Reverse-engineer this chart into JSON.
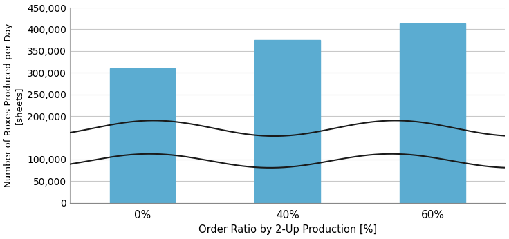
{
  "categories": [
    "0%",
    "40%",
    "60%"
  ],
  "bar_values": [
    310000,
    376000,
    414000
  ],
  "bar_color": "#5BACD1",
  "bar_positions": [
    1,
    3,
    5
  ],
  "bar_width": 0.9,
  "ylim": [
    0,
    450000
  ],
  "yticks": [
    0,
    50000,
    100000,
    200000,
    250000,
    300000,
    350000,
    400000,
    450000
  ],
  "ylabel": "Number of Boxes Produced per Day\n[sheets]",
  "xlabel": "Order Ratio by 2-Up Production [%]",
  "grid_color": "#c8c8c8",
  "line_color": "#1a1a1a",
  "background_color": "#ffffff",
  "upper_wave_base": 172000,
  "upper_wave_amp": 18000,
  "lower_wave_base": 97000,
  "lower_wave_amp": 16000,
  "wave_freq": 1.8,
  "wave_phase": 0.6
}
